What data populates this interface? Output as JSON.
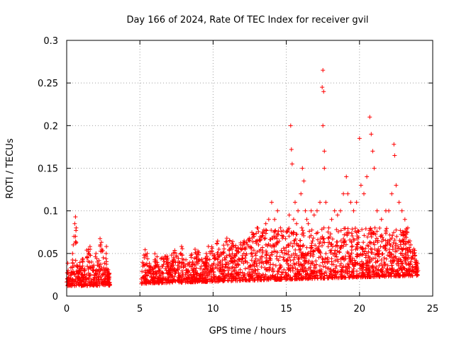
{
  "chart_data": {
    "type": "scatter",
    "title": "Day 166 of 2024, Rate Of TEC Index for receiver gvil",
    "xlabel": "GPS time / hours",
    "ylabel": "ROTI / TECUs",
    "xlim": [
      0,
      25
    ],
    "ylim": [
      0,
      0.3
    ],
    "x_ticks": [
      0,
      5,
      10,
      15,
      20,
      25
    ],
    "x_tick_labels": [
      "0",
      "5",
      "10",
      "15",
      "20",
      "25"
    ],
    "y_ticks": [
      0,
      0.05,
      0.1,
      0.15,
      0.2,
      0.25,
      0.3
    ],
    "y_tick_labels": [
      "0",
      "0.05",
      "0.1",
      "0.15",
      "0.2",
      "0.25",
      "0.3"
    ],
    "grid": true,
    "marker": "+",
    "series": [
      {
        "name": "ROTI",
        "color": "#ff0000",
        "description_range": "dense band 0.01-0.06 TECU/s with gap between ~2.9 h and ~5.1 h; peaks up to ~0.265 at ~17.5 h",
        "points": [
          [
            0.05,
            0.02
          ],
          [
            0.1,
            0.03
          ],
          [
            0.2,
            0.015
          ],
          [
            0.3,
            0.025
          ],
          [
            0.4,
            0.05
          ],
          [
            0.45,
            0.06
          ],
          [
            0.5,
            0.07
          ],
          [
            0.55,
            0.085
          ],
          [
            0.6,
            0.093
          ],
          [
            0.65,
            0.08
          ],
          [
            0.7,
            0.035
          ],
          [
            0.8,
            0.02
          ],
          [
            0.9,
            0.03
          ],
          [
            1.0,
            0.025
          ],
          [
            1.1,
            0.04
          ],
          [
            1.2,
            0.03
          ],
          [
            1.3,
            0.02
          ],
          [
            1.4,
            0.045
          ],
          [
            1.5,
            0.05
          ],
          [
            1.6,
            0.055
          ],
          [
            1.7,
            0.04
          ],
          [
            1.8,
            0.03
          ],
          [
            1.9,
            0.025
          ],
          [
            2.0,
            0.05
          ],
          [
            2.1,
            0.04
          ],
          [
            2.2,
            0.035
          ],
          [
            2.3,
            0.06
          ],
          [
            2.4,
            0.055
          ],
          [
            2.5,
            0.045
          ],
          [
            2.6,
            0.03
          ],
          [
            2.7,
            0.05
          ],
          [
            2.8,
            0.025
          ],
          [
            2.9,
            0.02
          ],
          [
            5.1,
            0.02
          ],
          [
            5.2,
            0.035
          ],
          [
            5.3,
            0.045
          ],
          [
            5.5,
            0.05
          ],
          [
            5.7,
            0.03
          ],
          [
            5.9,
            0.025
          ],
          [
            6.1,
            0.04
          ],
          [
            6.3,
            0.03
          ],
          [
            6.5,
            0.035
          ],
          [
            6.8,
            0.04
          ],
          [
            7.0,
            0.03
          ],
          [
            7.3,
            0.045
          ],
          [
            7.6,
            0.04
          ],
          [
            7.8,
            0.05
          ],
          [
            8.0,
            0.035
          ],
          [
            8.3,
            0.03
          ],
          [
            8.6,
            0.04
          ],
          [
            8.9,
            0.045
          ],
          [
            9.2,
            0.035
          ],
          [
            9.5,
            0.04
          ],
          [
            9.8,
            0.05
          ],
          [
            10.1,
            0.045
          ],
          [
            10.4,
            0.055
          ],
          [
            10.7,
            0.05
          ],
          [
            11.0,
            0.06
          ],
          [
            11.3,
            0.055
          ],
          [
            11.6,
            0.05
          ],
          [
            11.9,
            0.06
          ],
          [
            12.2,
            0.055
          ],
          [
            12.5,
            0.065
          ],
          [
            12.8,
            0.07
          ],
          [
            13.0,
            0.08
          ],
          [
            13.2,
            0.065
          ],
          [
            13.4,
            0.075
          ],
          [
            13.6,
            0.085
          ],
          [
            13.8,
            0.09
          ],
          [
            14.0,
            0.11
          ],
          [
            14.2,
            0.09
          ],
          [
            14.4,
            0.1
          ],
          [
            14.6,
            0.08
          ],
          [
            14.8,
            0.07
          ],
          [
            15.0,
            0.075
          ],
          [
            15.2,
            0.095
          ],
          [
            15.3,
            0.2
          ],
          [
            15.35,
            0.172
          ],
          [
            15.4,
            0.155
          ],
          [
            15.5,
            0.09
          ],
          [
            15.6,
            0.11
          ],
          [
            15.7,
            0.085
          ],
          [
            15.8,
            0.1
          ],
          [
            16.0,
            0.12
          ],
          [
            16.1,
            0.15
          ],
          [
            16.2,
            0.135
          ],
          [
            16.3,
            0.1
          ],
          [
            16.4,
            0.09
          ],
          [
            16.5,
            0.085
          ],
          [
            16.7,
            0.1
          ],
          [
            16.9,
            0.095
          ],
          [
            17.1,
            0.1
          ],
          [
            17.3,
            0.11
          ],
          [
            17.45,
            0.245
          ],
          [
            17.5,
            0.265
          ],
          [
            17.55,
            0.24
          ],
          [
            17.5,
            0.2
          ],
          [
            17.6,
            0.17
          ],
          [
            17.6,
            0.15
          ],
          [
            17.7,
            0.11
          ],
          [
            17.9,
            0.08
          ],
          [
            18.1,
            0.09
          ],
          [
            18.3,
            0.1
          ],
          [
            18.5,
            0.095
          ],
          [
            18.7,
            0.1
          ],
          [
            18.9,
            0.12
          ],
          [
            19.1,
            0.14
          ],
          [
            19.2,
            0.12
          ],
          [
            19.4,
            0.11
          ],
          [
            19.6,
            0.1
          ],
          [
            19.8,
            0.11
          ],
          [
            20.0,
            0.185
          ],
          [
            20.1,
            0.13
          ],
          [
            20.3,
            0.12
          ],
          [
            20.5,
            0.14
          ],
          [
            20.7,
            0.21
          ],
          [
            20.8,
            0.19
          ],
          [
            20.9,
            0.17
          ],
          [
            21.0,
            0.15
          ],
          [
            21.2,
            0.1
          ],
          [
            21.5,
            0.09
          ],
          [
            21.8,
            0.1
          ],
          [
            22.0,
            0.1
          ],
          [
            22.2,
            0.12
          ],
          [
            22.35,
            0.178
          ],
          [
            22.4,
            0.165
          ],
          [
            22.5,
            0.13
          ],
          [
            22.7,
            0.11
          ],
          [
            22.9,
            0.1
          ],
          [
            23.1,
            0.09
          ],
          [
            23.3,
            0.08
          ],
          [
            23.5,
            0.06
          ],
          [
            23.7,
            0.05
          ],
          [
            23.9,
            0.04
          ],
          [
            24.0,
            0.03
          ]
        ]
      }
    ]
  }
}
